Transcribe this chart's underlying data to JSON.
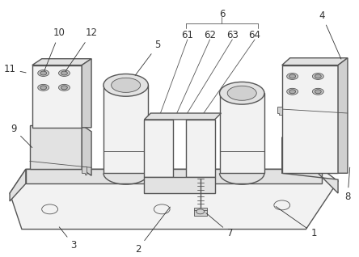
{
  "background_color": "#ffffff",
  "line_color": "#555555",
  "face_light": "#f2f2f2",
  "face_mid": "#e2e2e2",
  "face_dark": "#d0d0d0",
  "face_darker": "#c0c0c0",
  "label_fontsize": 8.5,
  "label_color": "#333333",
  "lw_main": 1.0,
  "lw_thin": 0.6
}
